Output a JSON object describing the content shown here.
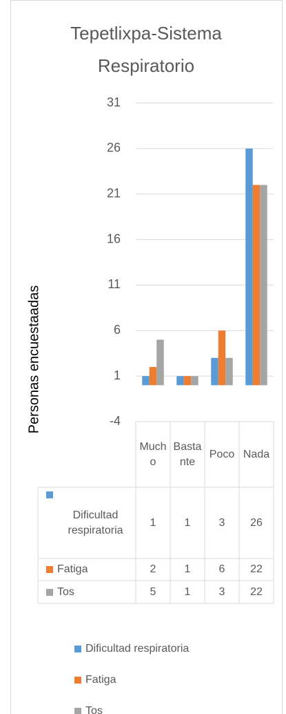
{
  "chart_data": {
    "type": "bar",
    "title": "Tepetlixpa-Sistema Respiratorio",
    "y_label": "Personas encuestaadas",
    "categories": [
      "Mucho",
      "Bastante",
      "Poco",
      "Nada"
    ],
    "series": [
      {
        "name": "Dificultad respiratoria",
        "color": "#5b9bd5",
        "values": [
          1,
          1,
          3,
          26
        ]
      },
      {
        "name": "Fatiga",
        "color": "#ed7d31",
        "values": [
          2,
          1,
          6,
          22
        ]
      },
      {
        "name": "Tos",
        "color": "#a5a5a5",
        "values": [
          5,
          1,
          3,
          22
        ]
      }
    ],
    "ylim": [
      -4,
      31
    ],
    "yticks": [
      -4,
      1,
      6,
      11,
      16,
      21,
      26,
      31
    ],
    "grid": true,
    "legend": "bottom"
  }
}
